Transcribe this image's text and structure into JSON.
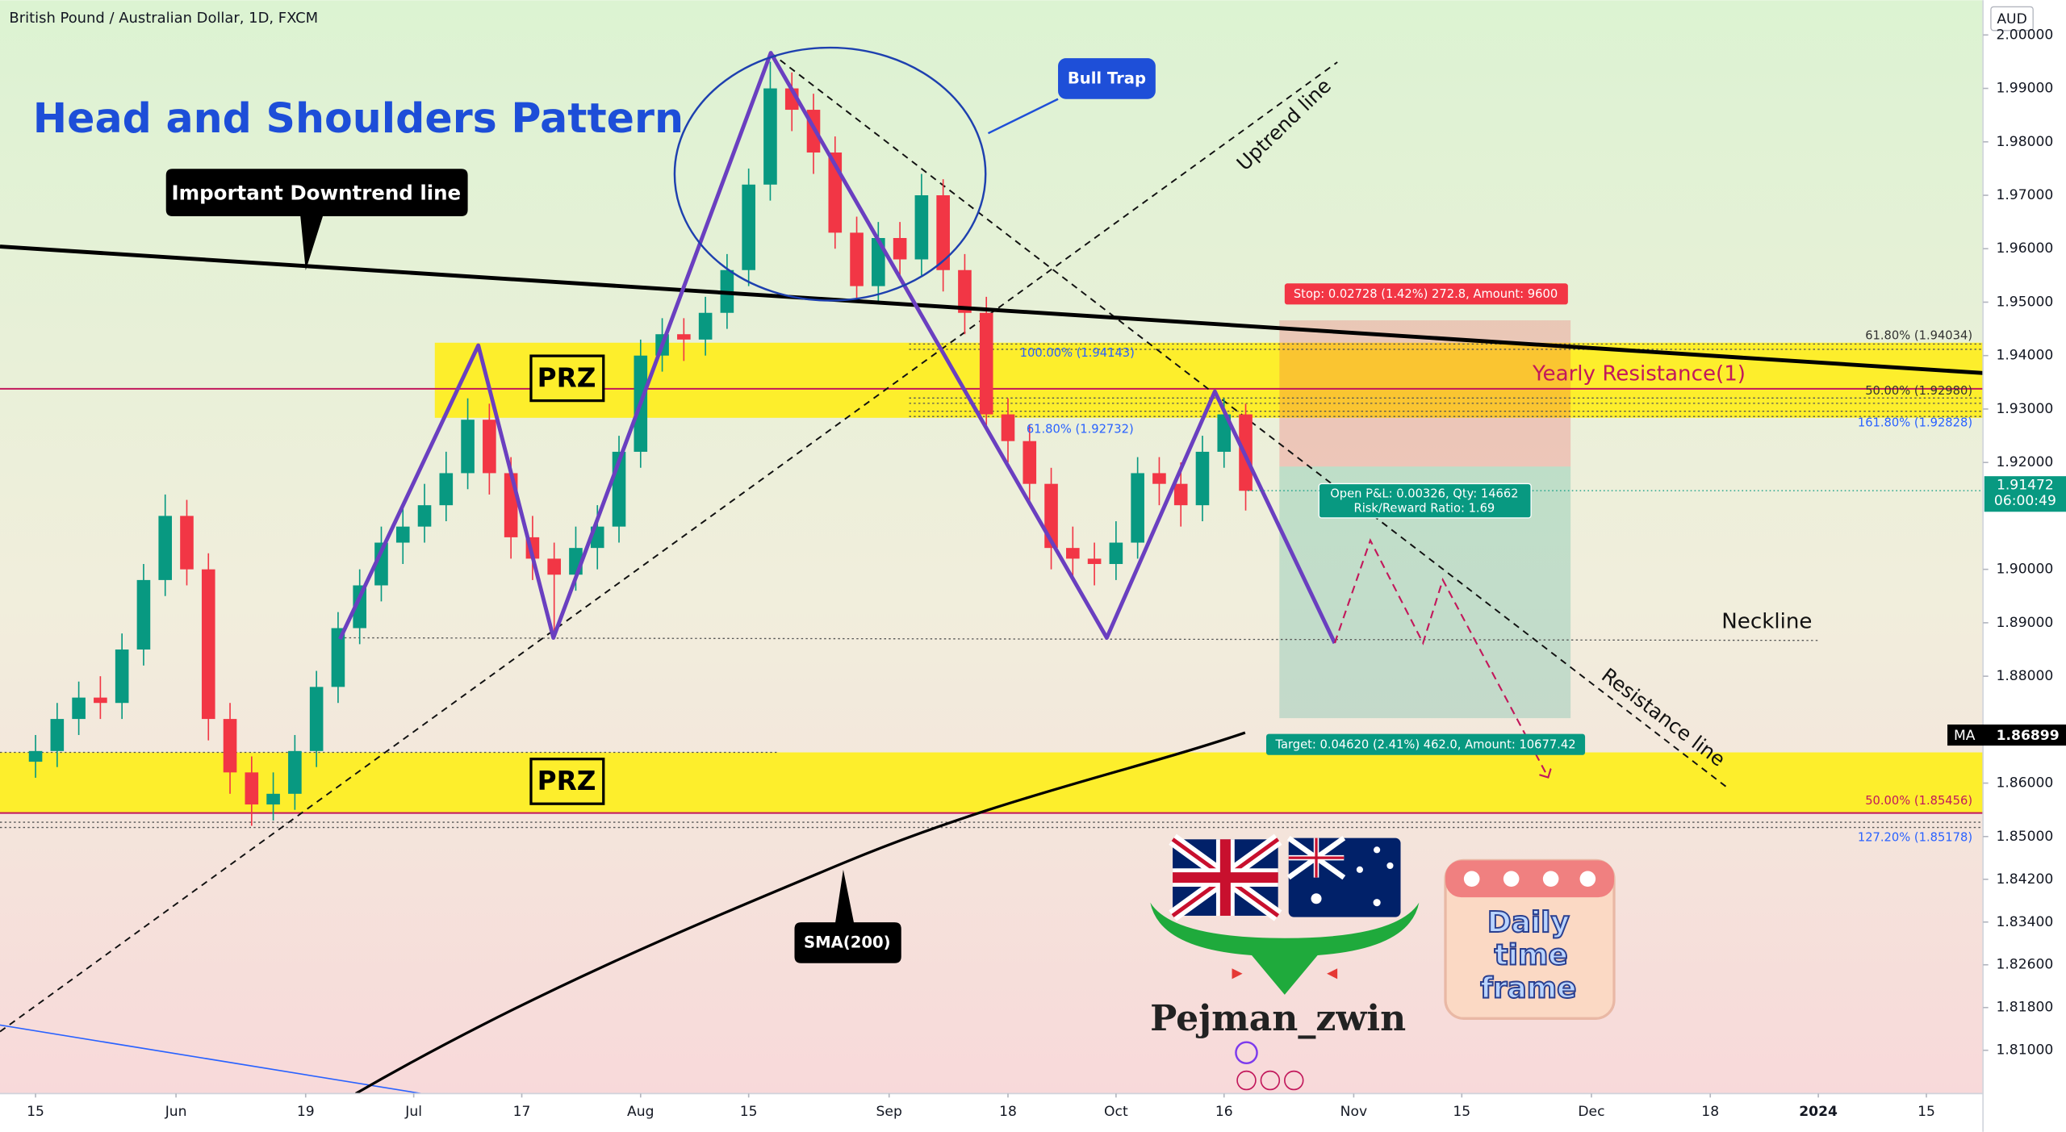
{
  "chart_data": {
    "type": "candlestick",
    "title": "British Pound / Australian Dollar, 1D, FXCM",
    "currency": "AUD",
    "x": [
      0,
      2,
      4,
      6,
      8,
      10,
      12,
      14,
      16,
      18,
      20,
      22,
      24,
      26,
      28,
      30,
      32,
      34,
      36,
      38,
      40,
      42,
      44,
      46,
      48,
      50,
      52,
      54,
      56,
      58,
      60,
      62,
      64,
      66,
      68,
      70,
      72,
      74,
      76,
      78,
      80,
      82,
      84,
      86,
      88,
      90,
      92,
      94,
      96,
      98,
      100,
      102,
      104,
      106,
      108,
      110,
      112
    ],
    "open": [
      1.864,
      1.866,
      1.872,
      1.876,
      1.875,
      1.885,
      1.898,
      1.91,
      1.9,
      1.872,
      1.862,
      1.856,
      1.858,
      1.866,
      1.878,
      1.889,
      1.897,
      1.905,
      1.908,
      1.912,
      1.918,
      1.928,
      1.918,
      1.906,
      1.902,
      1.899,
      1.904,
      1.908,
      1.922,
      1.94,
      1.944,
      1.943,
      1.948,
      1.956,
      1.972,
      1.99,
      1.986,
      1.978,
      1.963,
      1.953,
      1.962,
      1.958,
      1.97,
      1.956,
      1.948,
      1.929,
      1.924,
      1.916,
      1.904,
      1.902,
      1.901,
      1.905,
      1.918,
      1.916,
      1.912,
      1.922,
      1.929
    ],
    "high": [
      1.869,
      1.875,
      1.879,
      1.88,
      1.888,
      1.901,
      1.914,
      1.913,
      1.903,
      1.875,
      1.865,
      1.862,
      1.869,
      1.881,
      1.892,
      1.9,
      1.908,
      1.912,
      1.916,
      1.922,
      1.932,
      1.931,
      1.921,
      1.91,
      1.905,
      1.908,
      1.912,
      1.925,
      1.943,
      1.947,
      1.947,
      1.951,
      1.959,
      1.975,
      1.995,
      1.993,
      1.989,
      1.981,
      1.966,
      1.965,
      1.965,
      1.974,
      1.973,
      1.959,
      1.951,
      1.932,
      1.927,
      1.919,
      1.908,
      1.905,
      1.909,
      1.921,
      1.921,
      1.92,
      1.925,
      1.932,
      1.931
    ],
    "low": [
      1.861,
      1.863,
      1.869,
      1.872,
      1.872,
      1.882,
      1.895,
      1.897,
      1.868,
      1.858,
      1.852,
      1.853,
      1.855,
      1.863,
      1.875,
      1.886,
      1.894,
      1.901,
      1.905,
      1.909,
      1.915,
      1.914,
      1.902,
      1.898,
      1.888,
      1.896,
      1.9,
      1.905,
      1.919,
      1.937,
      1.939,
      1.94,
      1.945,
      1.953,
      1.969,
      1.982,
      1.974,
      1.96,
      1.95,
      1.95,
      1.954,
      1.955,
      1.952,
      1.944,
      1.926,
      1.92,
      1.912,
      1.9,
      1.898,
      1.897,
      1.898,
      1.902,
      1.912,
      1.908,
      1.909,
      1.919,
      1.911
    ],
    "close": [
      1.866,
      1.872,
      1.876,
      1.875,
      1.885,
      1.898,
      1.91,
      1.9,
      1.872,
      1.862,
      1.856,
      1.858,
      1.866,
      1.878,
      1.889,
      1.897,
      1.905,
      1.908,
      1.912,
      1.918,
      1.928,
      1.918,
      1.906,
      1.902,
      1.899,
      1.904,
      1.908,
      1.922,
      1.94,
      1.944,
      1.943,
      1.948,
      1.956,
      1.972,
      1.99,
      1.986,
      1.978,
      1.963,
      1.953,
      1.962,
      1.958,
      1.97,
      1.956,
      1.948,
      1.929,
      1.924,
      1.916,
      1.904,
      1.902,
      1.901,
      1.905,
      1.918,
      1.916,
      1.912,
      1.922,
      1.929,
      1.9147
    ],
    "up_color": "#089981",
    "down_color": "#f23645",
    "xlim": [
      -3.29,
      180.24
    ],
    "ylim": [
      1.8019,
      2.0065
    ],
    "xticks": [
      {
        "value": 0,
        "label": "15"
      },
      {
        "value": 13,
        "label": "Jun"
      },
      {
        "value": 25,
        "label": "19"
      },
      {
        "value": 35,
        "label": "Jul"
      },
      {
        "value": 45,
        "label": "17"
      },
      {
        "value": 56,
        "label": "Aug"
      },
      {
        "value": 66,
        "label": "15"
      },
      {
        "value": 79,
        "label": "Sep"
      },
      {
        "value": 90,
        "label": "18"
      },
      {
        "value": 100,
        "label": "Oct"
      },
      {
        "value": 110,
        "label": "16"
      },
      {
        "value": 122,
        "label": "Nov"
      },
      {
        "value": 132,
        "label": "15"
      },
      {
        "value": 144,
        "label": "Dec"
      },
      {
        "value": 155,
        "label": "18"
      },
      {
        "value": 165,
        "label": "2024"
      },
      {
        "value": 175,
        "label": "15"
      }
    ],
    "yticks": [
      {
        "value": 2.0,
        "label": "2.00000"
      },
      {
        "value": 1.99,
        "label": "1.99000"
      },
      {
        "value": 1.98,
        "label": "1.98000"
      },
      {
        "value": 1.97,
        "label": "1.97000"
      },
      {
        "value": 1.96,
        "label": "1.96000"
      },
      {
        "value": 1.95,
        "label": "1.95000"
      },
      {
        "value": 1.94,
        "label": "1.94000"
      },
      {
        "value": 1.93,
        "label": "1.93000"
      },
      {
        "value": 1.92,
        "label": "1.92000"
      },
      {
        "value": 1.9,
        "label": "1.90000"
      },
      {
        "value": 1.89,
        "label": "1.89000"
      },
      {
        "value": 1.88,
        "label": "1.88000"
      },
      {
        "value": 1.86,
        "label": "1.86000"
      },
      {
        "value": 1.85,
        "label": "1.85000"
      },
      {
        "value": 1.842,
        "label": "1.84200"
      },
      {
        "value": 1.834,
        "label": "1.83400"
      },
      {
        "value": 1.826,
        "label": "1.82600"
      },
      {
        "value": 1.818,
        "label": "1.81800"
      },
      {
        "value": 1.81,
        "label": "1.81000"
      }
    ],
    "last_price": 1.91472,
    "countdown": "06:00:49",
    "ma_label": "MA",
    "ma_value": 1.86899,
    "grid": false
  },
  "annotations": {
    "headline": "Head and Shoulders Pattern",
    "downtrend": "Important Downtrend line",
    "bull_trap": "Bull Trap",
    "uptrend": "Uptrend line",
    "prz_upper": "PRZ",
    "prz_lower": "PRZ",
    "yearly_resistance": "Yearly Resistance(1)",
    "neckline": "Neckline",
    "resistance": "Resistance line",
    "sma": "SMA(200)",
    "fib": [
      "61.80% (1.94034)",
      "50.00% (1.92980)",
      "161.80% (1.92828)",
      "100.00% (1.94143)",
      "61.80% (1.92732)",
      "50.00% (1.85456)",
      "127.20% (1.85178)"
    ],
    "stop": "Stop: 0.02728 (1.42%) 272.8, Amount: 9600",
    "pnl": "Open P&L: 0.00326, Qty: 14662",
    "rr": "Risk/Reward Ratio: 1.69",
    "target": "Target: 0.04620 (2.41%) 462.0, Amount: 10677.42",
    "author": "Pejman_zwin",
    "badge": [
      "Daily",
      "time",
      "frame"
    ]
  }
}
